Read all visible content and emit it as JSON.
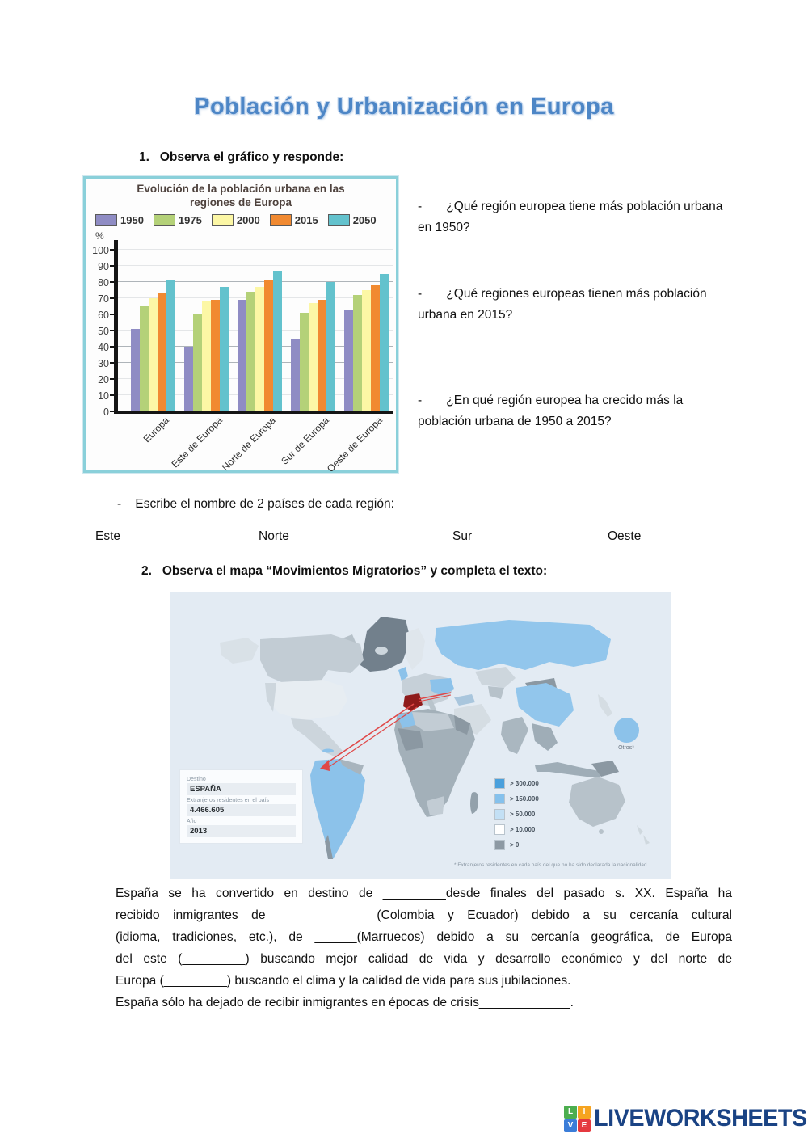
{
  "page_title": "Población y Urbanización en Europa",
  "section1": {
    "heading": "1.   Observa el gráfico y responde:",
    "questions": [
      "-       ¿Qué región europea tiene más población urbana en 1950?",
      "-       ¿Qué regiones europeas tienen más población urbana en 2015?",
      "-       ¿En qué región europea ha crecido más la población urbana de 1950 a 2015?"
    ],
    "subtask": "-    Escribe el nombre de 2 países de cada región:",
    "regions": [
      "Este",
      "Norte",
      "Sur",
      "Oeste"
    ]
  },
  "chart_data": {
    "type": "bar",
    "title": "Evolución de la población urbana en las regiones de Europa",
    "ylabel": "%",
    "ylim": [
      0,
      100
    ],
    "yticks": [
      0,
      10,
      20,
      30,
      40,
      50,
      60,
      70,
      80,
      90,
      100
    ],
    "grid": true,
    "legend_position": "top",
    "categories": [
      "Europa",
      "Este de Europa",
      "Norte de Europa",
      "Sur de Europa",
      "Oeste de Europa"
    ],
    "series": [
      {
        "name": "1950",
        "color": "#8f8cc4",
        "values": [
          51,
          40,
          69,
          45,
          63
        ]
      },
      {
        "name": "1975",
        "color": "#b4d178",
        "values": [
          65,
          60,
          74,
          61,
          72
        ]
      },
      {
        "name": "2000",
        "color": "#fcf7a5",
        "values": [
          70,
          68,
          77,
          67,
          75
        ]
      },
      {
        "name": "2015",
        "color": "#f18a31",
        "values": [
          73,
          69,
          81,
          69,
          78
        ]
      },
      {
        "name": "2050",
        "color": "#63c2cd",
        "values": [
          81,
          77,
          87,
          80,
          85
        ]
      }
    ]
  },
  "section2": {
    "heading": "2.   Observa el mapa “Movimientos Migratorios” y completa el texto:",
    "map": {
      "info_box": {
        "destino_label": "Destino",
        "destino_value": "ESPAÑA",
        "extranjeros_label": "Extranjeros residentes en el país",
        "extranjeros_value": "4.466.605",
        "ano_label": "Año",
        "ano_value": "2013"
      },
      "legend": [
        {
          "color": "#4aa0dc",
          "label": "> 300.000"
        },
        {
          "color": "#85c1ec",
          "label": "> 150.000"
        },
        {
          "color": "#c3e0f5",
          "label": "> 50.000"
        },
        {
          "color": "#ffffff",
          "label": "> 10.000"
        },
        {
          "color": "#8d99a3",
          "label": "> 0"
        }
      ],
      "others_label": "Otros*",
      "footnote": "* Extranjeros residentes en cada país del que no ha sido declarada la nacionalidad"
    },
    "paragraph": [
      "España se ha convertido en destino de _________desde finales del pasado s. XX. España ha",
      "recibido inmigrantes de ______________(Colombia y Ecuador) debido a su cercanía cultural",
      "(idioma, tradiciones, etc.), de ______(Marruecos) debido a su cercanía geográfica, de Europa",
      "del este (_________) buscando mejor calidad de vida y desarrollo económico y del norte de",
      "Europa (_________) buscando el clima y la calidad de vida para sus jubilaciones.",
      "España sólo ha dejado de recibir inmigrantes en épocas de crisis_____________."
    ]
  },
  "footer": {
    "brand": "LIVEWORKSHEETS",
    "logo_squares": [
      {
        "letter": "L",
        "color": "#4cae4f"
      },
      {
        "letter": "I",
        "color": "#f6a420"
      },
      {
        "letter": "V",
        "color": "#3b7dd8"
      },
      {
        "letter": "E",
        "color": "#e5393f"
      }
    ]
  }
}
